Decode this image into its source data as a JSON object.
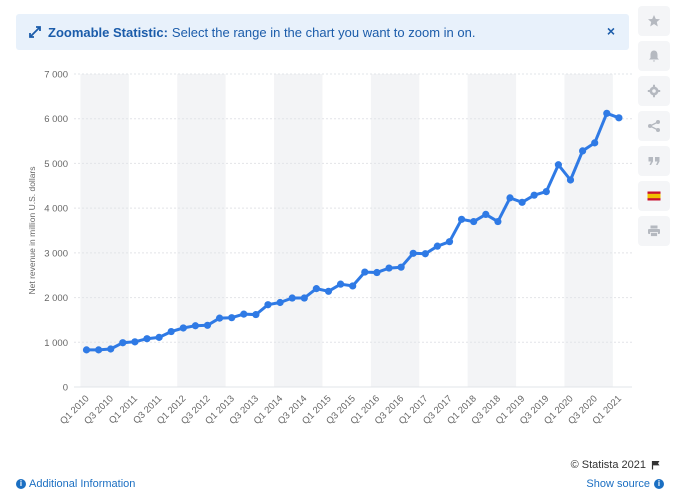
{
  "banner": {
    "title": "Zoomable Statistic:",
    "text": "Select the range in the chart you want to zoom in on.",
    "close": "×"
  },
  "toolbar": {
    "icons": [
      "star-icon",
      "bell-icon",
      "gear-icon",
      "share-icon",
      "quote-icon",
      "flag-icon",
      "print-icon"
    ]
  },
  "footer": {
    "copyright": "© Statista 2021",
    "additional_info": "Additional Information",
    "show_source": "Show source"
  },
  "colors": {
    "line": "#2f7ae5",
    "banner_bg": "#e8f1fb",
    "link": "#1b6fc2",
    "stripe": "#f3f4f6"
  },
  "chart_data": {
    "type": "line",
    "title": "",
    "xlabel": "",
    "ylabel": "Net revenue in million U.S. dollars",
    "ylim": [
      0,
      7000
    ],
    "yticks": [
      0,
      1000,
      2000,
      3000,
      4000,
      5000,
      6000,
      7000
    ],
    "ytick_labels": [
      "0",
      "1 000",
      "2 000",
      "3 000",
      "4 000",
      "5 000",
      "6 000",
      "7 000"
    ],
    "grid": true,
    "categories": [
      "Q1 2010",
      "Q2 2010",
      "Q3 2010",
      "Q4 2010",
      "Q1 2011",
      "Q2 2011",
      "Q3 2011",
      "Q4 2011",
      "Q1 2012",
      "Q2 2012",
      "Q3 2012",
      "Q4 2012",
      "Q1 2013",
      "Q2 2013",
      "Q3 2013",
      "Q4 2013",
      "Q1 2014",
      "Q2 2014",
      "Q3 2014",
      "Q4 2014",
      "Q1 2015",
      "Q2 2015",
      "Q3 2015",
      "Q4 2015",
      "Q1 2016",
      "Q2 2016",
      "Q3 2016",
      "Q4 2016",
      "Q1 2017",
      "Q2 2017",
      "Q3 2017",
      "Q4 2017",
      "Q1 2018",
      "Q2 2018",
      "Q3 2018",
      "Q4 2018",
      "Q1 2019",
      "Q2 2019",
      "Q3 2019",
      "Q4 2019",
      "Q1 2020",
      "Q2 2020",
      "Q3 2020",
      "Q4 2020",
      "Q1 2021"
    ],
    "x_tick_labels": [
      "Q1 2010",
      "Q3 2010",
      "Q1 2011",
      "Q3 2011",
      "Q1 2012",
      "Q3 2012",
      "Q1 2013",
      "Q3 2013",
      "Q1 2014",
      "Q3 2014",
      "Q1 2015",
      "Q3 2015",
      "Q1 2016",
      "Q3 2016",
      "Q1 2017",
      "Q3 2017",
      "Q1 2018",
      "Q3 2018",
      "Q1 2019",
      "Q3 2019",
      "Q1 2020",
      "Q3 2020",
      "Q1 2021"
    ],
    "series": [
      {
        "values": [
          830,
          830,
          850,
          990,
          1010,
          1080,
          1110,
          1240,
          1320,
          1370,
          1380,
          1540,
          1550,
          1630,
          1620,
          1840,
          1890,
          1990,
          1990,
          2200,
          2140,
          2300,
          2260,
          2570,
          2560,
          2660,
          2680,
          2990,
          2980,
          3150,
          3250,
          3750,
          3700,
          3860,
          3700,
          4230,
          4130,
          4290,
          4370,
          4970,
          4630,
          5280,
          5460,
          6120,
          6020
        ]
      }
    ]
  }
}
